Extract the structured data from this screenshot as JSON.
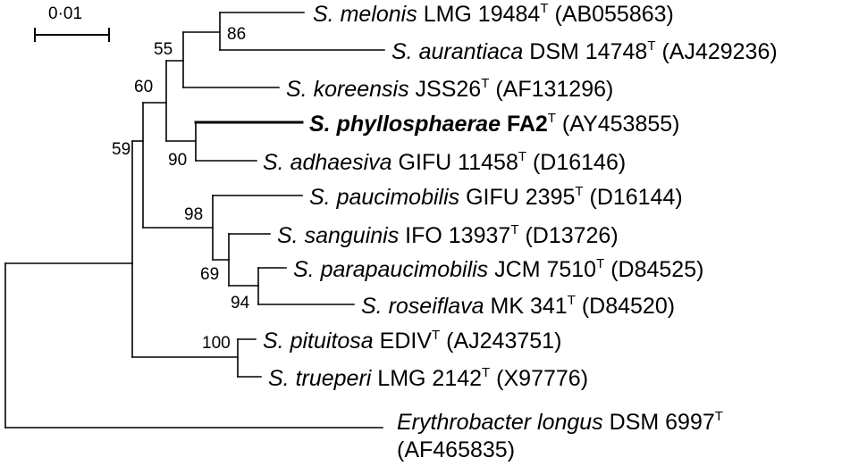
{
  "scale": {
    "label": "0·01"
  },
  "taxa": [
    {
      "id": "melonis",
      "genus": "S.",
      "species": "melonis",
      "strain": "LMG 19484",
      "type_mark": "T",
      "accession": "(AB055863)"
    },
    {
      "id": "aurantiaca",
      "genus": "S.",
      "species": "aurantiaca",
      "strain": "DSM 14748",
      "type_mark": "T",
      "accession": "(AJ429236)"
    },
    {
      "id": "koreensis",
      "genus": "S.",
      "species": "koreensis",
      "strain": "JSS26",
      "type_mark": "T",
      "accession": "(AF131296)"
    },
    {
      "id": "phyllosphaerae",
      "genus": "S.",
      "species": "phyllosphaerae",
      "strain": "FA2",
      "type_mark": "T",
      "accession": "(AY453855)"
    },
    {
      "id": "adhaesiva",
      "genus": "S.",
      "species": "adhaesiva",
      "strain": "GIFU 11458",
      "type_mark": "T",
      "accession": "(D16146)"
    },
    {
      "id": "paucimobilis",
      "genus": "S.",
      "species": "paucimobilis",
      "strain": "GIFU 2395",
      "type_mark": "T",
      "accession": "(D16144)"
    },
    {
      "id": "sanguinis",
      "genus": "S.",
      "species": "sanguinis",
      "strain": "IFO 13937",
      "type_mark": "T",
      "accession": "(D13726)"
    },
    {
      "id": "parapaucimobilis",
      "genus": "S.",
      "species": "parapaucimobilis",
      "strain": "JCM 7510",
      "type_mark": "T",
      "accession": "(D84525)"
    },
    {
      "id": "roseiflava",
      "genus": "S.",
      "species": "roseiflava",
      "strain": "MK 341",
      "type_mark": "T",
      "accession": "(D84520)"
    },
    {
      "id": "pituitosa",
      "genus": "S.",
      "species": "pituitosa",
      "strain": "EDIV",
      "type_mark": "T",
      "accession": "(AJ243751)"
    },
    {
      "id": "trueperi",
      "genus": "S.",
      "species": "trueperi",
      "strain": "LMG 2142",
      "type_mark": "T",
      "accession": "(X97776)"
    },
    {
      "id": "erythrobacter",
      "genus": "Erythrobacter",
      "species": "longus",
      "strain": "DSM 6997",
      "type_mark": "T",
      "accession": "(AF465835)"
    }
  ],
  "bootstrap": [
    "86",
    "55",
    "60",
    "59",
    "90",
    "98",
    "69",
    "94",
    "100"
  ]
}
